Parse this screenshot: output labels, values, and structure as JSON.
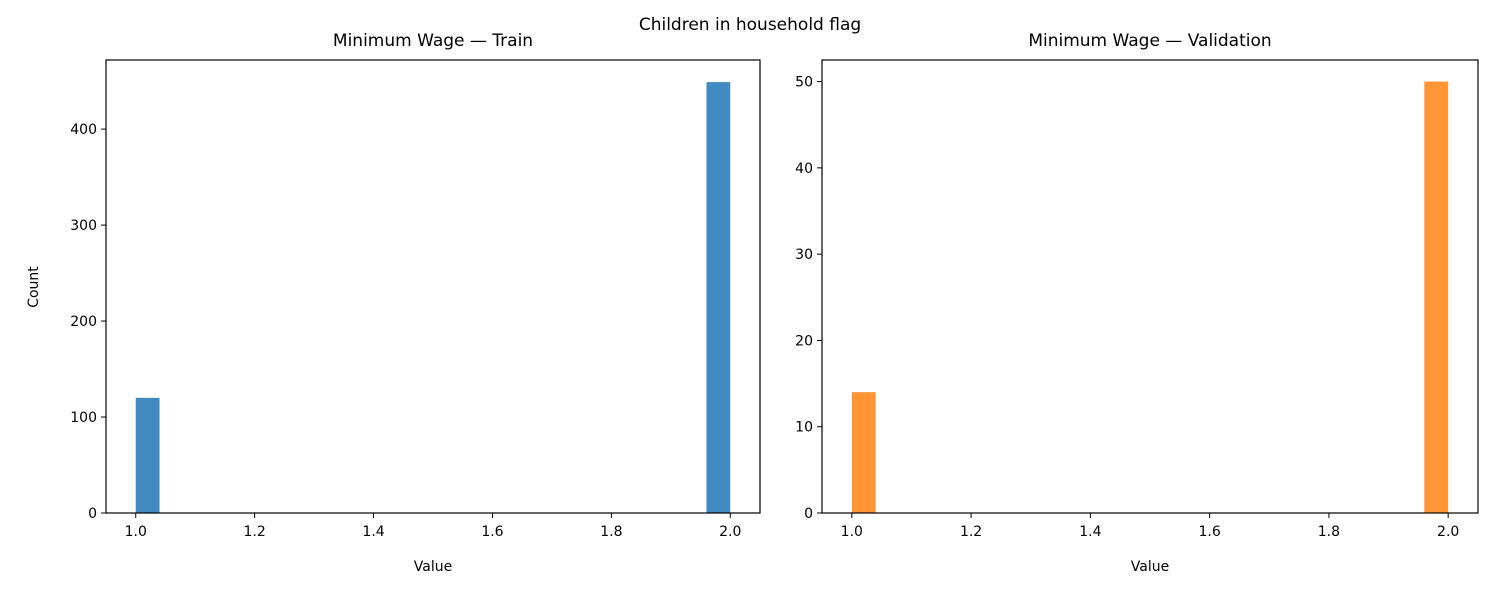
{
  "figure": {
    "suptitle": "Children in household flag"
  },
  "chart_data": [
    {
      "type": "bar",
      "title": "Minimum Wage — Train",
      "xlabel": "Value",
      "ylabel": "Count",
      "xlim": [
        0.95,
        2.05
      ],
      "ylim": [
        0,
        472
      ],
      "xticks": [
        "1.0",
        "1.2",
        "1.4",
        "1.6",
        "1.8",
        "2.0"
      ],
      "yticks": [
        "0",
        "100",
        "200",
        "300",
        "400"
      ],
      "bars": [
        {
          "x0": 1.0,
          "x1": 1.04,
          "value": 120
        },
        {
          "x0": 1.96,
          "x1": 2.0,
          "value": 449
        }
      ],
      "color": "#428bc1",
      "grid": false,
      "legend": false
    },
    {
      "type": "bar",
      "title": "Minimum Wage — Validation",
      "xlabel": "Value",
      "ylabel": "",
      "xlim": [
        0.95,
        2.05
      ],
      "ylim": [
        0,
        52.5
      ],
      "xticks": [
        "1.0",
        "1.2",
        "1.4",
        "1.6",
        "1.8",
        "2.0"
      ],
      "yticks": [
        "0",
        "10",
        "20",
        "30",
        "40",
        "50"
      ],
      "bars": [
        {
          "x0": 1.0,
          "x1": 1.04,
          "value": 14
        },
        {
          "x0": 1.96,
          "x1": 2.0,
          "value": 50
        }
      ],
      "color": "#ff9535",
      "grid": false,
      "legend": false
    }
  ]
}
